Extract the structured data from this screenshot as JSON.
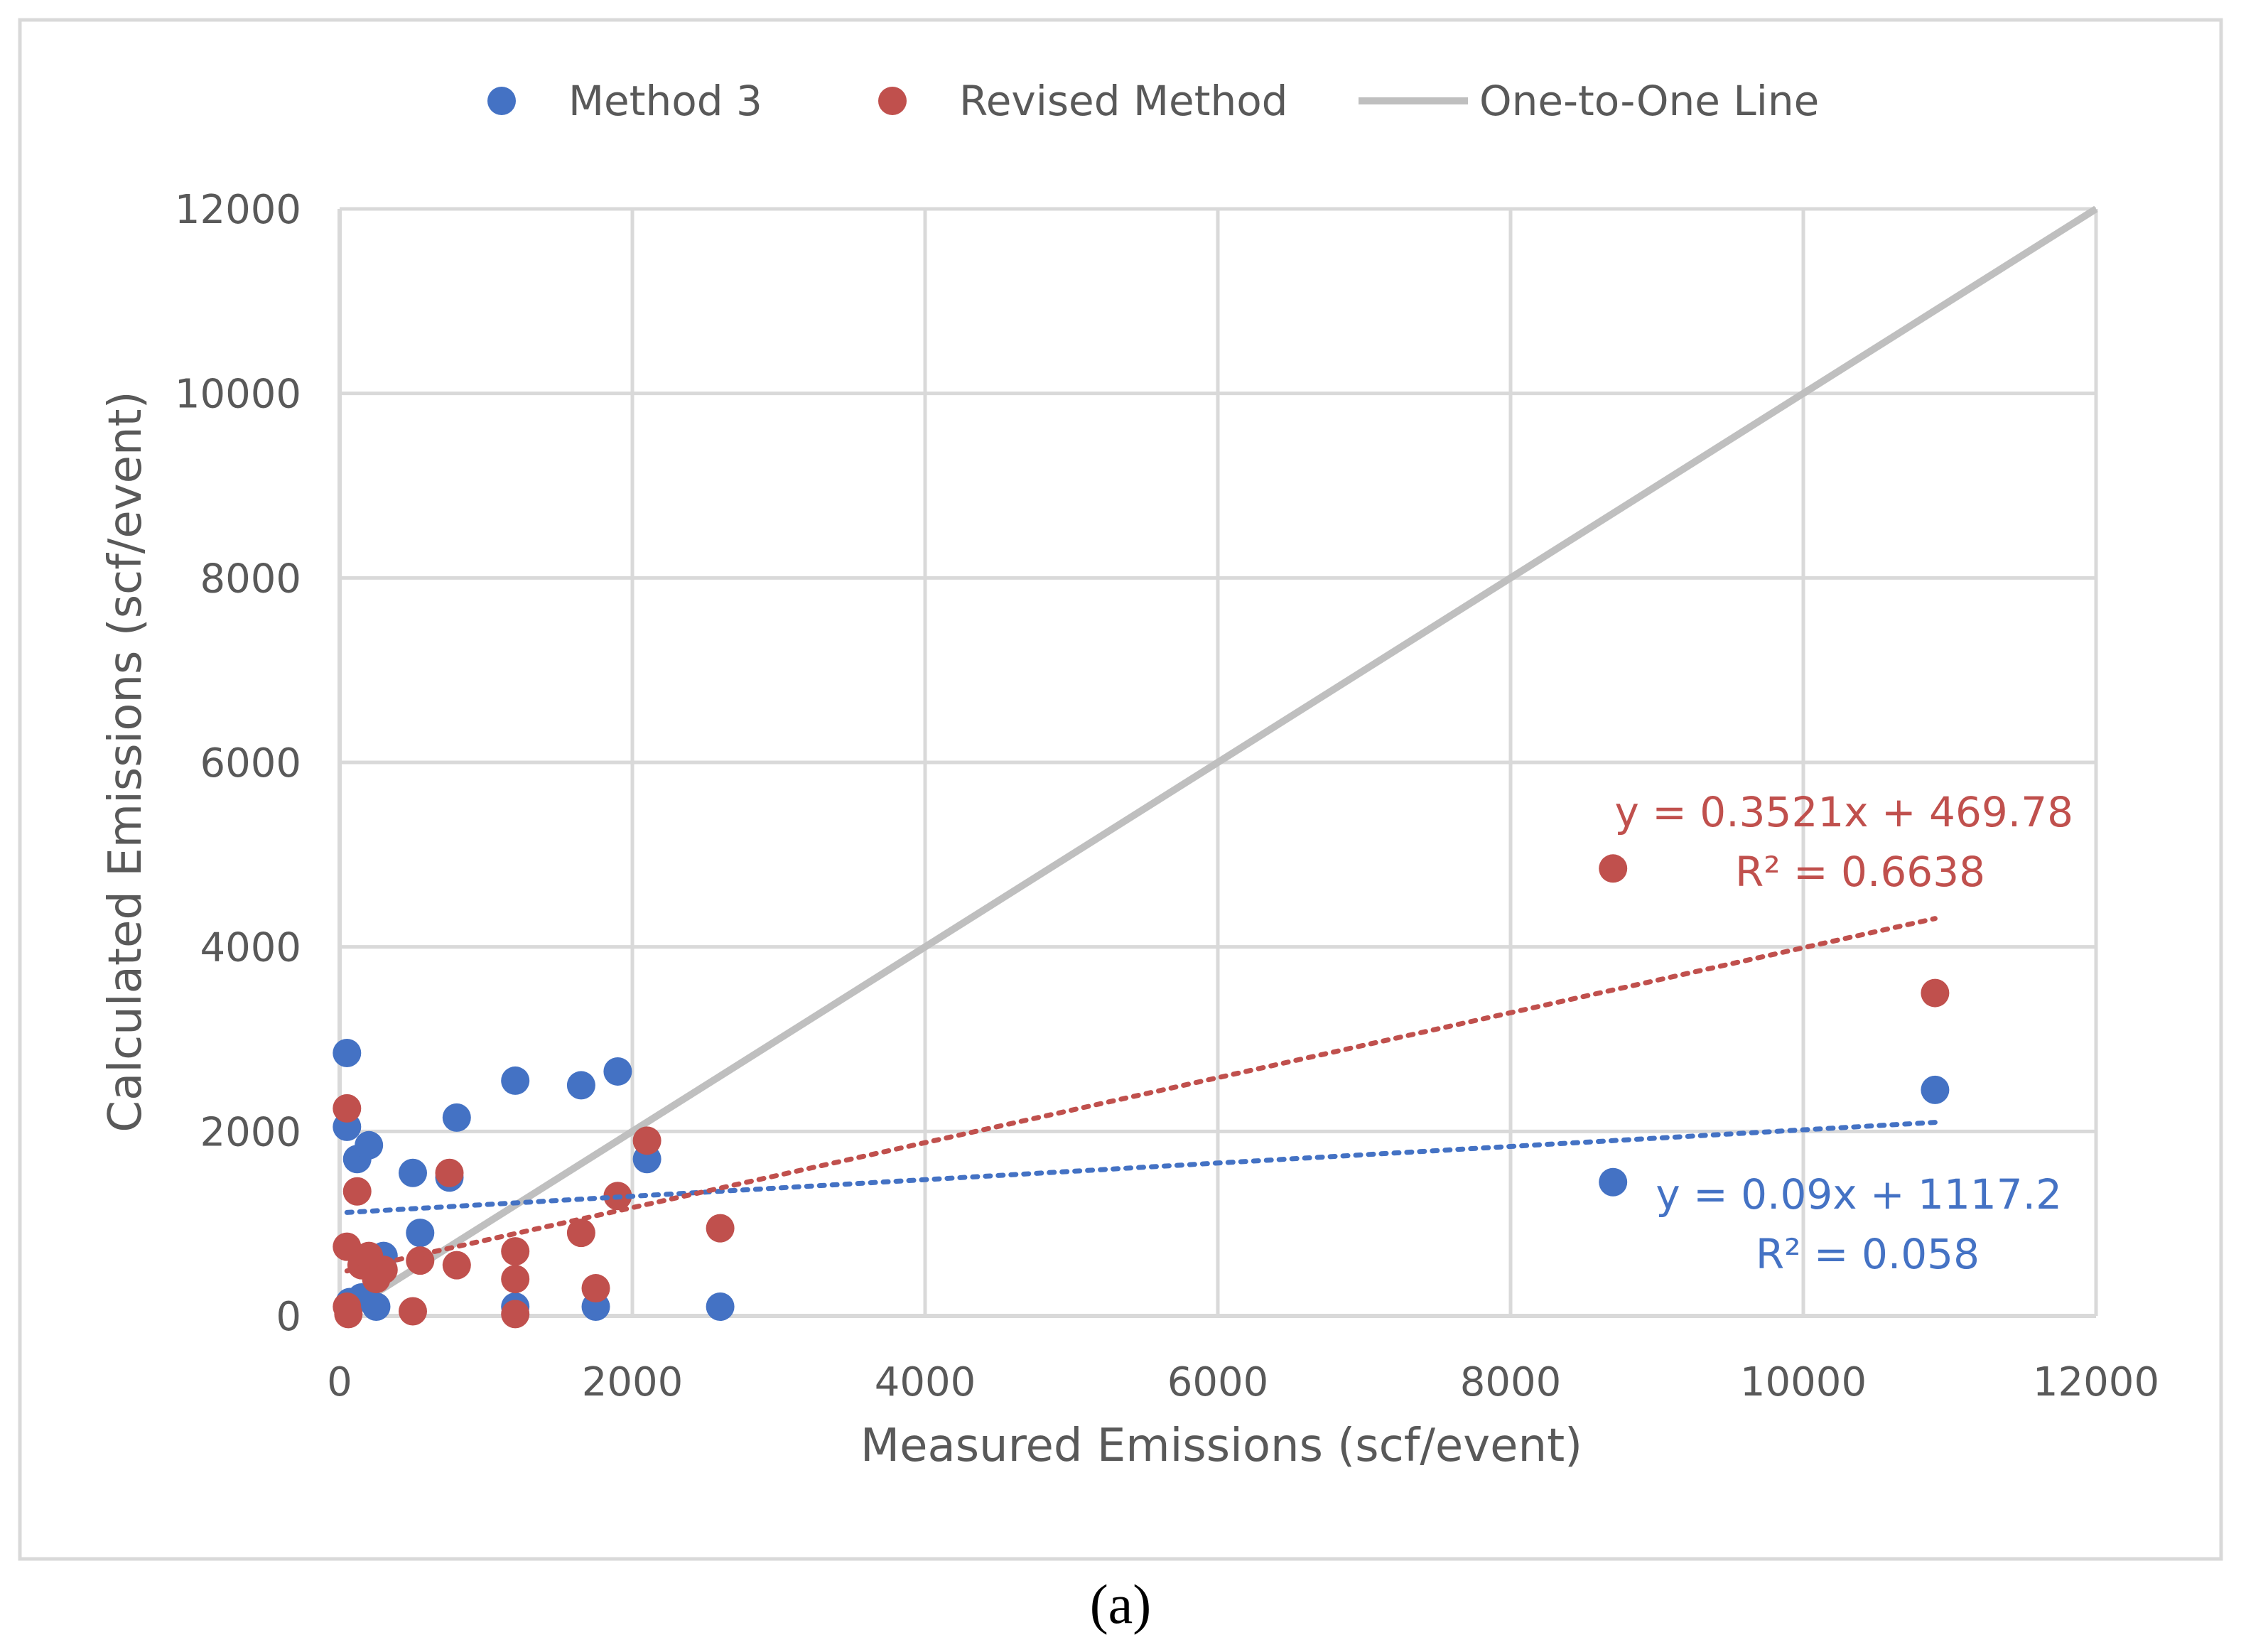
{
  "chart_data": {
    "type": "scatter",
    "title": "",
    "xlabel": "Measured  Emissions (scf/event)",
    "ylabel": "Calculated Emissions (scf/event)",
    "xlim": [
      0,
      12000
    ],
    "ylim": [
      0,
      12000
    ],
    "grid": true,
    "legend_position": "top",
    "x_ticks": [
      0,
      2000,
      4000,
      6000,
      8000,
      10000,
      12000
    ],
    "y_ticks": [
      0,
      2000,
      4000,
      6000,
      8000,
      10000,
      12000
    ],
    "series": [
      {
        "name": "Method 3",
        "color": "#4472C4",
        "points": [
          [
            50,
            2850
          ],
          [
            50,
            2050
          ],
          [
            70,
            150
          ],
          [
            120,
            1700
          ],
          [
            150,
            200
          ],
          [
            200,
            1850
          ],
          [
            250,
            100
          ],
          [
            300,
            650
          ],
          [
            500,
            1550
          ],
          [
            550,
            900
          ],
          [
            750,
            1500
          ],
          [
            800,
            2150
          ],
          [
            1200,
            2550
          ],
          [
            1200,
            100
          ],
          [
            1650,
            2500
          ],
          [
            1750,
            100
          ],
          [
            1900,
            2650
          ],
          [
            2100,
            1700
          ],
          [
            2600,
            100
          ],
          [
            8700,
            1450
          ],
          [
            10900,
            2450
          ]
        ],
        "trendline": {
          "slope": 0.09,
          "intercept": 1117.2,
          "x_range": [
            50,
            10900
          ]
        },
        "equation": "y = 0.09x + 1117.2",
        "r2_label": "R² = 0.058"
      },
      {
        "name": "Revised Method",
        "color": "#C0504D",
        "points": [
          [
            50,
            2250
          ],
          [
            50,
            750
          ],
          [
            50,
            100
          ],
          [
            60,
            20
          ],
          [
            120,
            1350
          ],
          [
            150,
            550
          ],
          [
            200,
            650
          ],
          [
            250,
            400
          ],
          [
            300,
            500
          ],
          [
            500,
            50
          ],
          [
            550,
            600
          ],
          [
            750,
            1550
          ],
          [
            800,
            550
          ],
          [
            1200,
            700
          ],
          [
            1200,
            400
          ],
          [
            1200,
            20
          ],
          [
            1650,
            900
          ],
          [
            1750,
            300
          ],
          [
            1900,
            1300
          ],
          [
            2100,
            1900
          ],
          [
            2600,
            950
          ],
          [
            8700,
            4850
          ],
          [
            10900,
            3500
          ]
        ],
        "trendline": {
          "slope": 0.3521,
          "intercept": 469.78,
          "x_range": [
            50,
            10900
          ]
        },
        "equation": "y = 0.3521x + 469.78",
        "r2_label": "R² = 0.6638"
      },
      {
        "name": "One-to-One Line",
        "color": "#BFBFBF",
        "type": "line",
        "x": [
          0,
          12000
        ],
        "y": [
          0,
          12000
        ]
      }
    ]
  },
  "colors": {
    "grid": "#D9D9D9",
    "text": "#595959",
    "frame": "#D9D9D9"
  },
  "caption": "(a)"
}
